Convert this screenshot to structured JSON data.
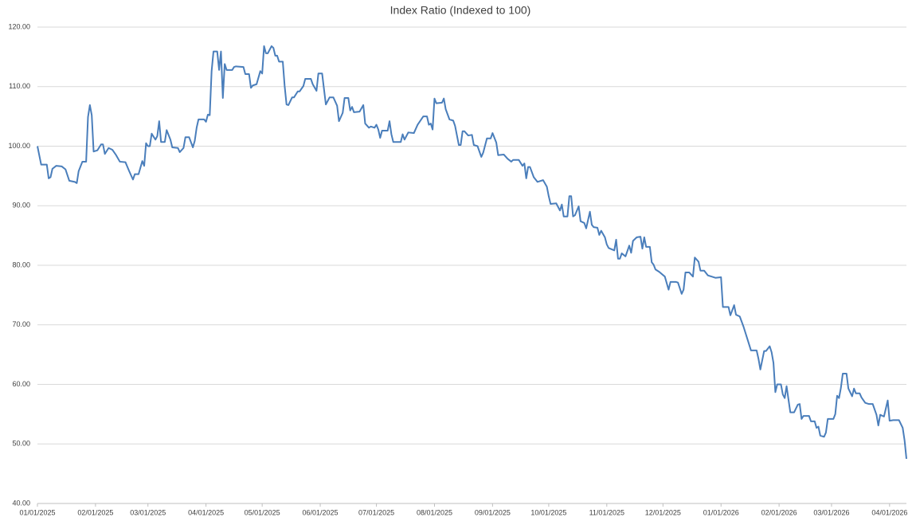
{
  "chart_data": {
    "type": "line",
    "title": "Index Ratio (Indexed to 100)",
    "x": [
      "2025-01-01",
      "2025-01-03",
      "2025-01-06",
      "2025-01-07",
      "2025-01-08",
      "2025-01-09",
      "2025-01-11",
      "2025-01-14",
      "2025-01-16",
      "2025-01-18",
      "2025-01-21",
      "2025-01-22",
      "2025-01-23",
      "2025-01-25",
      "2025-01-27",
      "2025-01-28",
      "2025-01-29",
      "2025-01-30",
      "2025-01-31",
      "2025-02-02",
      "2025-02-04",
      "2025-02-05",
      "2025-02-06",
      "2025-02-08",
      "2025-02-10",
      "2025-02-12",
      "2025-02-14",
      "2025-02-17",
      "2025-02-19",
      "2025-02-21",
      "2025-02-22",
      "2025-02-24",
      "2025-02-26",
      "2025-02-27",
      "2025-02-28",
      "2025-03-01",
      "2025-03-02",
      "2025-03-03",
      "2025-03-05",
      "2025-03-06",
      "2025-03-07",
      "2025-03-08",
      "2025-03-10",
      "2025-03-11",
      "2025-03-13",
      "2025-03-14",
      "2025-03-17",
      "2025-03-18",
      "2025-03-20",
      "2025-03-21",
      "2025-03-23",
      "2025-03-25",
      "2025-03-26",
      "2025-03-27",
      "2025-03-28",
      "2025-03-31",
      "2025-04-01",
      "2025-04-02",
      "2025-04-03",
      "2025-04-04",
      "2025-04-05",
      "2025-04-07",
      "2025-04-08",
      "2025-04-09",
      "2025-04-10",
      "2025-04-11",
      "2025-04-12",
      "2025-04-15",
      "2025-04-16",
      "2025-04-17",
      "2025-04-21",
      "2025-04-22",
      "2025-04-24",
      "2025-04-25",
      "2025-04-26",
      "2025-04-28",
      "2025-04-30",
      "2025-05-01",
      "2025-05-02",
      "2025-05-03",
      "2025-05-04",
      "2025-05-06",
      "2025-05-07",
      "2025-05-08",
      "2025-05-09",
      "2025-05-10",
      "2025-05-12",
      "2025-05-13",
      "2025-05-14",
      "2025-05-15",
      "2025-05-17",
      "2025-05-18",
      "2025-05-20",
      "2025-05-21",
      "2025-05-23",
      "2025-05-24",
      "2025-05-27",
      "2025-05-28",
      "2025-05-30",
      "2025-05-31",
      "2025-06-02",
      "2025-06-03",
      "2025-06-04",
      "2025-06-06",
      "2025-06-08",
      "2025-06-10",
      "2025-06-11",
      "2025-06-13",
      "2025-06-14",
      "2025-06-16",
      "2025-06-17",
      "2025-06-18",
      "2025-06-19",
      "2025-06-22",
      "2025-06-24",
      "2025-06-25",
      "2025-06-27",
      "2025-06-28",
      "2025-06-30",
      "2025-07-01",
      "2025-07-02",
      "2025-07-03",
      "2025-07-04",
      "2025-07-07",
      "2025-07-08",
      "2025-07-09",
      "2025-07-10",
      "2025-07-14",
      "2025-07-15",
      "2025-07-16",
      "2025-07-18",
      "2025-07-21",
      "2025-07-23",
      "2025-07-26",
      "2025-07-28",
      "2025-07-29",
      "2025-07-30",
      "2025-07-31",
      "2025-08-01",
      "2025-08-02",
      "2025-08-05",
      "2025-08-06",
      "2025-08-07",
      "2025-08-09",
      "2025-08-11",
      "2025-08-12",
      "2025-08-13",
      "2025-08-14",
      "2025-08-15",
      "2025-08-16",
      "2025-08-17",
      "2025-08-19",
      "2025-08-21",
      "2025-08-22",
      "2025-08-24",
      "2025-08-26",
      "2025-08-27",
      "2025-08-29",
      "2025-08-31",
      "2025-09-01",
      "2025-09-03",
      "2025-09-04",
      "2025-09-07",
      "2025-09-09",
      "2025-09-11",
      "2025-09-12",
      "2025-09-15",
      "2025-09-17",
      "2025-09-18",
      "2025-09-19",
      "2025-09-20",
      "2025-09-21",
      "2025-09-23",
      "2025-09-25",
      "2025-09-28",
      "2025-09-30",
      "2025-10-01",
      "2025-10-02",
      "2025-10-05",
      "2025-10-07",
      "2025-10-08",
      "2025-10-09",
      "2025-10-11",
      "2025-10-12",
      "2025-10-13",
      "2025-10-14",
      "2025-10-15",
      "2025-10-17",
      "2025-10-18",
      "2025-10-20",
      "2025-10-21",
      "2025-10-23",
      "2025-10-24",
      "2025-10-25",
      "2025-10-27",
      "2025-10-28",
      "2025-10-29",
      "2025-10-31",
      "2025-11-01",
      "2025-11-02",
      "2025-11-05",
      "2025-11-06",
      "2025-11-07",
      "2025-11-08",
      "2025-11-09",
      "2025-11-11",
      "2025-11-13",
      "2025-11-14",
      "2025-11-15",
      "2025-11-17",
      "2025-11-19",
      "2025-11-20",
      "2025-11-21",
      "2025-11-22",
      "2025-11-24",
      "2025-11-25",
      "2025-11-26",
      "2025-11-27",
      "2025-11-29",
      "2025-12-02",
      "2025-12-04",
      "2025-12-05",
      "2025-12-08",
      "2025-12-09",
      "2025-12-11",
      "2025-12-12",
      "2025-12-13",
      "2025-12-15",
      "2025-12-17",
      "2025-12-18",
      "2025-12-20",
      "2025-12-21",
      "2025-12-23",
      "2025-12-25",
      "2025-12-27",
      "2025-12-29",
      "2026-01-01",
      "2026-01-02",
      "2026-01-05",
      "2026-01-06",
      "2026-01-08",
      "2026-01-09",
      "2026-01-11",
      "2026-01-13",
      "2026-01-15",
      "2026-01-17",
      "2026-01-20",
      "2026-01-21",
      "2026-01-22",
      "2026-01-24",
      "2026-01-25",
      "2026-01-27",
      "2026-01-28",
      "2026-01-29",
      "2026-01-30",
      "2026-01-31",
      "2026-02-02",
      "2026-02-03",
      "2026-02-04",
      "2026-02-05",
      "2026-02-07",
      "2026-02-09",
      "2026-02-11",
      "2026-02-12",
      "2026-02-13",
      "2026-02-14",
      "2026-02-17",
      "2026-02-18",
      "2026-02-20",
      "2026-02-21",
      "2026-02-22",
      "2026-02-23",
      "2026-02-25",
      "2026-02-26",
      "2026-02-27",
      "2026-03-02",
      "2026-03-03",
      "2026-03-04",
      "2026-03-05",
      "2026-03-06",
      "2026-03-07",
      "2026-03-09",
      "2026-03-10",
      "2026-03-12",
      "2026-03-13",
      "2026-03-14",
      "2026-03-16",
      "2026-03-17",
      "2026-03-19",
      "2026-03-21",
      "2026-03-23",
      "2026-03-25",
      "2026-03-26",
      "2026-03-27",
      "2026-03-29",
      "2026-03-31",
      "2026-04-01",
      "2026-04-03",
      "2026-04-06",
      "2026-04-08",
      "2026-04-09",
      "2026-04-10"
    ],
    "series": [
      {
        "color": "#4a7ebb",
        "values": [
          100,
          96.9,
          96.9,
          94.6,
          94.8,
          96.2,
          96.7,
          96.6,
          96.1,
          94.2,
          94.0,
          93.8,
          95.8,
          97.4,
          97.4,
          104.9,
          106.9,
          105.2,
          99.1,
          99.3,
          100.3,
          100.3,
          98.7,
          99.7,
          99.4,
          98.5,
          97.4,
          97.3,
          95.8,
          94.4,
          95.3,
          95.3,
          97.5,
          96.7,
          100.5,
          100,
          100,
          102.1,
          101.1,
          101.7,
          104.2,
          100.7,
          100.7,
          102.7,
          101.1,
          99.8,
          99.7,
          99,
          99.7,
          101.5,
          101.5,
          99.8,
          100.9,
          103.1,
          104.5,
          104.5,
          104.1,
          105.3,
          105.2,
          112.6,
          115.9,
          115.9,
          112.8,
          115.9,
          108.1,
          113.8,
          112.8,
          112.8,
          113.3,
          113.4,
          113.3,
          112.1,
          112.1,
          109.8,
          110.2,
          110.4,
          112.6,
          112.2,
          116.8,
          115.6,
          115.6,
          116.8,
          116.5,
          115.2,
          115.2,
          114.2,
          114.2,
          110.1,
          107,
          106.9,
          108.2,
          108.2,
          109.2,
          109.2,
          110.1,
          111.3,
          111.3,
          110.4,
          109.3,
          112.2,
          112.2,
          109.6,
          107,
          108.2,
          108.2,
          106.8,
          104.2,
          105.6,
          108.1,
          108.1,
          106,
          106.6,
          105.7,
          105.8,
          106.9,
          103.8,
          103.1,
          103.3,
          103.1,
          103.6,
          102.8,
          101.4,
          102.6,
          102.6,
          104.2,
          102,
          100.7,
          100.7,
          102,
          101.1,
          102.3,
          102.2,
          103.6,
          105,
          105,
          103.6,
          103.8,
          102.8,
          108,
          107.2,
          107.3,
          108,
          106.2,
          104.5,
          104.3,
          103.4,
          101.8,
          100.2,
          100.2,
          102.5,
          102.5,
          101.8,
          101.9,
          100.2,
          100,
          98.2,
          98.9,
          101.3,
          101.3,
          102.2,
          100.6,
          98.5,
          98.6,
          97.9,
          97.4,
          97.7,
          97.7,
          96.7,
          97.1,
          94.6,
          96.5,
          96.5,
          94.8,
          94,
          94.3,
          93.2,
          91.6,
          90.3,
          90.4,
          89.2,
          90.2,
          88.2,
          88.2,
          91.6,
          91.6,
          88.2,
          88.4,
          89.9,
          87.4,
          87.1,
          86.2,
          89,
          86.8,
          86.4,
          86.3,
          85.1,
          85.8,
          84.7,
          83.5,
          82.9,
          82.5,
          84.3,
          81.1,
          81.1,
          82,
          81.5,
          83.3,
          82.1,
          84.1,
          84.7,
          84.8,
          82.8,
          84.7,
          83.1,
          83.1,
          80.5,
          80.1,
          79.3,
          78.9,
          78.1,
          75.9,
          77.2,
          77.2,
          77.1,
          75.2,
          75.9,
          78.8,
          78.8,
          78.1,
          81.3,
          80.6,
          79.1,
          79.1,
          78.3,
          78.1,
          77.9,
          78,
          73,
          73,
          71.6,
          73.3,
          71.7,
          71.4,
          69.7,
          67.7,
          65.7,
          65.7,
          64.3,
          62.5,
          65.6,
          65.6,
          66.4,
          65.4,
          63.6,
          58.7,
          60,
          60,
          58.3,
          57.7,
          59.7,
          55.3,
          55.3,
          56.6,
          56.7,
          54.2,
          54.7,
          54.7,
          53.8,
          53.8,
          52.7,
          52.9,
          51.4,
          51.2,
          51.9,
          54.2,
          54.2,
          55,
          58.1,
          57.7,
          59.4,
          61.8,
          61.8,
          59.3,
          58,
          59.3,
          58.5,
          58.5,
          57.8,
          56.9,
          56.7,
          56.7,
          54.9,
          53.1,
          54.9,
          54.6,
          57.3,
          53.9,
          54,
          54,
          52.7,
          50.6,
          47.5
        ]
      }
    ],
    "xlim": [
      "2025-01-01",
      "2026-04-10"
    ],
    "xticks": [
      {
        "value": "2025-01-01",
        "label": "01/01/2025"
      },
      {
        "value": "2025-02-01",
        "label": "02/01/2025"
      },
      {
        "value": "2025-03-01",
        "label": "03/01/2025"
      },
      {
        "value": "2025-04-01",
        "label": "04/01/2025"
      },
      {
        "value": "2025-05-01",
        "label": "05/01/2025"
      },
      {
        "value": "2025-06-01",
        "label": "06/01/2025"
      },
      {
        "value": "2025-07-01",
        "label": "07/01/2025"
      },
      {
        "value": "2025-08-01",
        "label": "08/01/2025"
      },
      {
        "value": "2025-09-01",
        "label": "09/01/2025"
      },
      {
        "value": "2025-10-01",
        "label": "10/01/2025"
      },
      {
        "value": "2025-11-01",
        "label": "11/01/2025"
      },
      {
        "value": "2025-12-01",
        "label": "12/01/2025"
      },
      {
        "value": "2026-01-01",
        "label": "01/01/2026"
      },
      {
        "value": "2026-02-01",
        "label": "02/01/2026"
      },
      {
        "value": "2026-03-01",
        "label": "03/01/2026"
      },
      {
        "value": "2026-04-01",
        "label": "04/01/2026"
      }
    ],
    "ylim": [
      40,
      120
    ],
    "yticks": [
      {
        "value": 40,
        "label": "40.00"
      },
      {
        "value": 50,
        "label": "50.00"
      },
      {
        "value": 60,
        "label": "60.00"
      },
      {
        "value": 70,
        "label": "70.00"
      },
      {
        "value": 80,
        "label": "80.00"
      },
      {
        "value": 90,
        "label": "90.00"
      },
      {
        "value": 100,
        "label": "100.00"
      },
      {
        "value": 110,
        "label": "110.00"
      },
      {
        "value": 120,
        "label": "120.00"
      }
    ],
    "grid": true
  }
}
